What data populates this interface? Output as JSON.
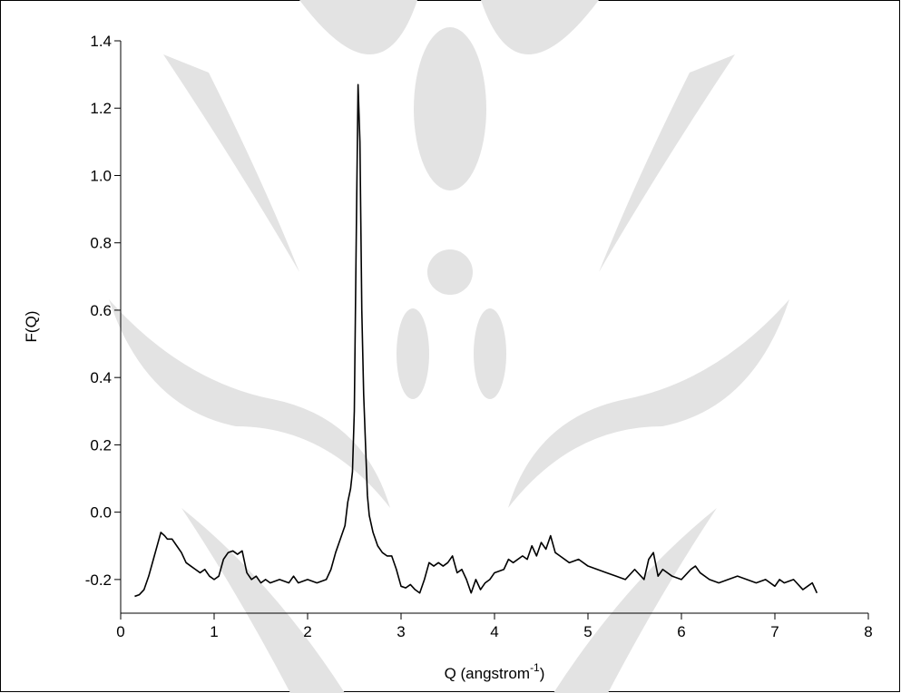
{
  "chart_data": {
    "type": "line",
    "y_label": "F(Q)",
    "x_label": {
      "text": "Q (angstrom",
      "superscript": "-1",
      "suffix": ")"
    },
    "xlim": [
      0,
      8
    ],
    "xticks": [
      0,
      1,
      2,
      3,
      4,
      5,
      6,
      7,
      8
    ],
    "ylim": [
      -0.3,
      1.4
    ],
    "yticks": [
      -0.2,
      {
        "value": 0,
        "label": "0.0"
      },
      0.2,
      0.4,
      0.6,
      0.8,
      {
        "value": 1,
        "label": "1.0"
      },
      1.2,
      1.4
    ],
    "grid": false,
    "color": "#000000",
    "x": [
      0.15,
      0.2,
      0.25,
      0.3,
      0.35,
      0.4,
      0.43,
      0.47,
      0.5,
      0.55,
      0.6,
      0.65,
      0.7,
      0.75,
      0.8,
      0.85,
      0.9,
      0.95,
      1.0,
      1.05,
      1.1,
      1.15,
      1.2,
      1.25,
      1.3,
      1.35,
      1.4,
      1.45,
      1.5,
      1.55,
      1.6,
      1.7,
      1.8,
      1.85,
      1.9,
      2.0,
      2.1,
      2.2,
      2.25,
      2.3,
      2.35,
      2.4,
      2.43,
      2.46,
      2.48,
      2.5,
      2.52,
      2.54,
      2.56,
      2.58,
      2.6,
      2.62,
      2.64,
      2.66,
      2.7,
      2.75,
      2.8,
      2.85,
      2.9,
      2.95,
      3.0,
      3.05,
      3.1,
      3.15,
      3.2,
      3.25,
      3.3,
      3.35,
      3.4,
      3.45,
      3.5,
      3.55,
      3.6,
      3.65,
      3.7,
      3.75,
      3.8,
      3.85,
      3.9,
      3.95,
      4.0,
      4.1,
      4.15,
      4.2,
      4.3,
      4.35,
      4.4,
      4.45,
      4.5,
      4.55,
      4.6,
      4.65,
      4.7,
      4.8,
      4.9,
      5.0,
      5.1,
      5.2,
      5.3,
      5.4,
      5.5,
      5.6,
      5.65,
      5.7,
      5.75,
      5.8,
      5.9,
      6.0,
      6.1,
      6.15,
      6.2,
      6.3,
      6.4,
      6.5,
      6.6,
      6.7,
      6.8,
      6.9,
      7.0,
      7.05,
      7.1,
      7.2,
      7.3,
      7.35,
      7.4,
      7.45
    ],
    "values": [
      -0.25,
      -0.245,
      -0.23,
      -0.19,
      -0.14,
      -0.09,
      -0.06,
      -0.07,
      -0.08,
      -0.08,
      -0.1,
      -0.12,
      -0.15,
      -0.16,
      -0.17,
      -0.18,
      -0.17,
      -0.19,
      -0.2,
      -0.19,
      -0.14,
      -0.12,
      -0.115,
      -0.125,
      -0.115,
      -0.18,
      -0.2,
      -0.19,
      -0.21,
      -0.2,
      -0.21,
      -0.2,
      -0.21,
      -0.19,
      -0.21,
      -0.2,
      -0.21,
      -0.2,
      -0.17,
      -0.12,
      -0.08,
      -0.04,
      0.03,
      0.07,
      0.12,
      0.3,
      0.8,
      1.27,
      1.1,
      0.6,
      0.35,
      0.2,
      0.05,
      -0.01,
      -0.06,
      -0.1,
      -0.12,
      -0.13,
      -0.13,
      -0.17,
      -0.22,
      -0.225,
      -0.215,
      -0.23,
      -0.24,
      -0.2,
      -0.15,
      -0.16,
      -0.15,
      -0.16,
      -0.15,
      -0.13,
      -0.18,
      -0.17,
      -0.2,
      -0.24,
      -0.2,
      -0.23,
      -0.21,
      -0.2,
      -0.18,
      -0.17,
      -0.14,
      -0.15,
      -0.13,
      -0.14,
      -0.1,
      -0.13,
      -0.09,
      -0.11,
      -0.07,
      -0.12,
      -0.13,
      -0.15,
      -0.14,
      -0.16,
      -0.17,
      -0.18,
      -0.19,
      -0.2,
      -0.17,
      -0.2,
      -0.14,
      -0.12,
      -0.19,
      -0.17,
      -0.19,
      -0.2,
      -0.17,
      -0.16,
      -0.18,
      -0.2,
      -0.21,
      -0.2,
      -0.19,
      -0.2,
      -0.21,
      -0.2,
      -0.22,
      -0.2,
      -0.21,
      -0.2,
      -0.23,
      -0.22,
      -0.21,
      -0.24
    ]
  }
}
